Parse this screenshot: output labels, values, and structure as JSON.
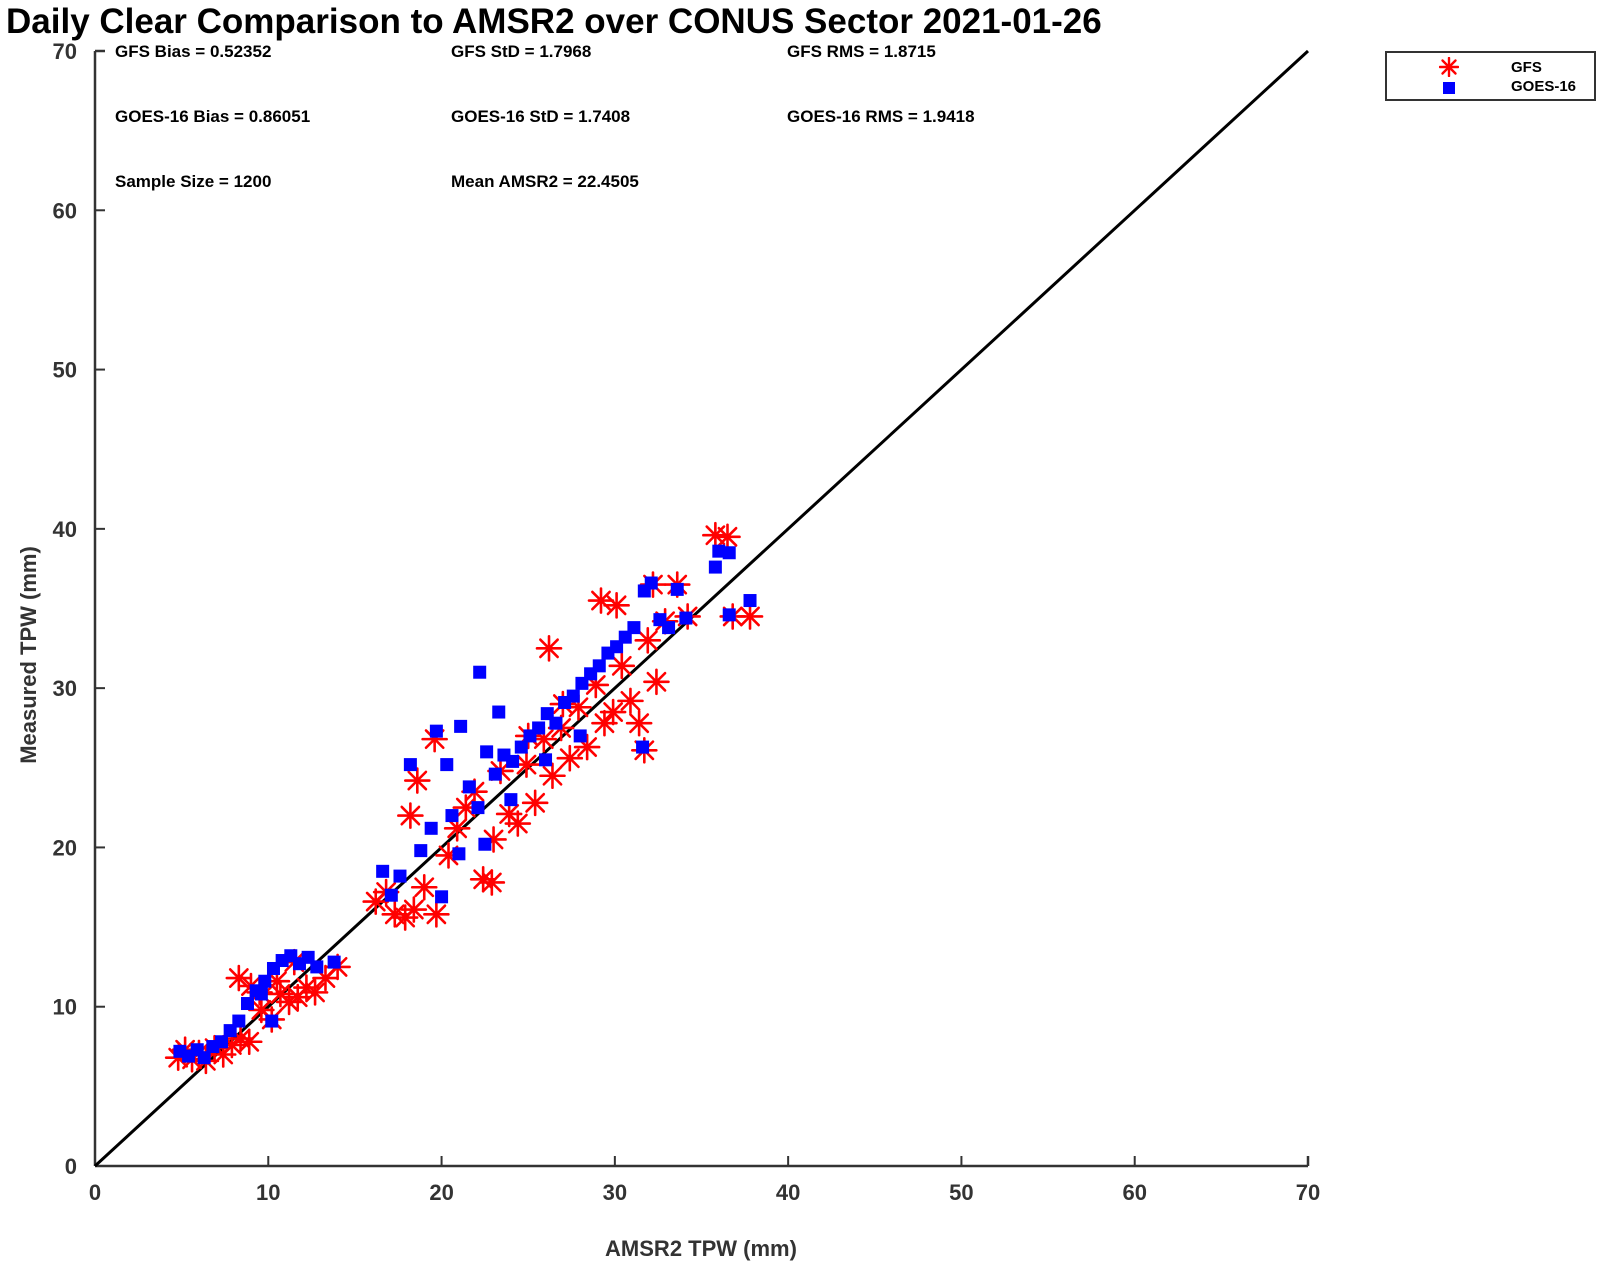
{
  "chart_data": {
    "type": "scatter",
    "title": "Daily Clear Comparison to AMSR2 over CONUS Sector 2021-01-26",
    "xlabel": "AMSR2 TPW (mm)",
    "ylabel": "Measured TPW (mm)",
    "xlim": [
      0,
      70
    ],
    "ylim": [
      0,
      70
    ],
    "xticks": [
      "0",
      "10",
      "20",
      "30",
      "40",
      "50",
      "60",
      "70"
    ],
    "yticks": [
      "0",
      "10",
      "20",
      "30",
      "40",
      "50",
      "60",
      "70"
    ],
    "grid": false,
    "legend_position": "outside-top-right",
    "reference_line": {
      "from": [
        0,
        0
      ],
      "to": [
        70,
        70
      ],
      "color": "#000000"
    },
    "stats": [
      {
        "text": "GFS Bias = 0.52352"
      },
      {
        "text": "GFS StD = 1.7968"
      },
      {
        "text": "GFS RMS = 1.8715"
      },
      {
        "text": "GOES-16 Bias = 0.86051"
      },
      {
        "text": "GOES-16 StD = 1.7408"
      },
      {
        "text": "GOES-16 RMS = 1.9418"
      },
      {
        "text": "Sample Size = 1200"
      },
      {
        "text": "Mean AMSR2 = 22.4505"
      }
    ],
    "series": [
      {
        "name": "GFS",
        "marker": "asterisk",
        "color": "#ff0000",
        "points": [
          [
            4.8,
            6.8
          ],
          [
            5.2,
            7.3
          ],
          [
            5.6,
            6.7
          ],
          [
            6.0,
            7.1
          ],
          [
            6.4,
            6.6
          ],
          [
            6.9,
            7.4
          ],
          [
            7.4,
            7.0
          ],
          [
            7.9,
            7.6
          ],
          [
            8.4,
            8.0
          ],
          [
            8.9,
            7.8
          ],
          [
            8.3,
            11.8
          ],
          [
            9.0,
            11.3
          ],
          [
            9.6,
            9.8
          ],
          [
            10.2,
            9.2
          ],
          [
            10.7,
            10.8
          ],
          [
            11.2,
            10.3
          ],
          [
            11.7,
            10.6
          ],
          [
            12.2,
            11.2
          ],
          [
            12.7,
            10.9
          ],
          [
            13.3,
            11.8
          ],
          [
            14.0,
            12.5
          ],
          [
            11.5,
            12.8
          ],
          [
            10.5,
            11.6
          ],
          [
            9.5,
            10.9
          ],
          [
            16.2,
            16.6
          ],
          [
            16.8,
            17.2
          ],
          [
            17.3,
            15.8
          ],
          [
            17.9,
            15.6
          ],
          [
            18.4,
            16.1
          ],
          [
            19.0,
            17.5
          ],
          [
            19.7,
            15.8
          ],
          [
            18.6,
            24.2
          ],
          [
            19.6,
            26.8
          ],
          [
            18.2,
            22.0
          ],
          [
            20.4,
            19.5
          ],
          [
            20.9,
            21.2
          ],
          [
            21.4,
            22.5
          ],
          [
            21.9,
            23.5
          ],
          [
            22.4,
            18.0
          ],
          [
            22.9,
            17.8
          ],
          [
            23.0,
            20.5
          ],
          [
            23.4,
            24.8
          ],
          [
            23.9,
            22.1
          ],
          [
            24.4,
            21.5
          ],
          [
            24.9,
            25.2
          ],
          [
            25.4,
            22.8
          ],
          [
            25.9,
            26.8
          ],
          [
            26.2,
            32.5
          ],
          [
            26.4,
            24.5
          ],
          [
            26.9,
            27.5
          ],
          [
            27.4,
            25.6
          ],
          [
            27.9,
            28.8
          ],
          [
            28.4,
            26.3
          ],
          [
            28.9,
            30.2
          ],
          [
            29.2,
            35.5
          ],
          [
            29.4,
            27.8
          ],
          [
            29.9,
            28.5
          ],
          [
            30.1,
            35.2
          ],
          [
            30.4,
            31.4
          ],
          [
            30.9,
            29.2
          ],
          [
            31.4,
            27.8
          ],
          [
            31.7,
            26.1
          ],
          [
            31.9,
            33.0
          ],
          [
            32.2,
            36.5
          ],
          [
            32.4,
            30.4
          ],
          [
            32.9,
            34.2
          ],
          [
            33.6,
            36.5
          ],
          [
            34.2,
            34.5
          ],
          [
            35.8,
            39.6
          ],
          [
            36.5,
            39.5
          ],
          [
            36.8,
            34.5
          ],
          [
            37.8,
            34.5
          ],
          [
            25.0,
            27.0
          ],
          [
            27.0,
            29.0
          ]
        ]
      },
      {
        "name": "GOES-16",
        "marker": "square",
        "color": "#0000ff",
        "points": [
          [
            4.9,
            7.2
          ],
          [
            5.4,
            6.9
          ],
          [
            5.9,
            7.3
          ],
          [
            6.3,
            6.8
          ],
          [
            6.8,
            7.5
          ],
          [
            7.3,
            7.8
          ],
          [
            7.8,
            8.5
          ],
          [
            8.3,
            9.1
          ],
          [
            8.8,
            10.2
          ],
          [
            9.3,
            11.0
          ],
          [
            9.8,
            11.6
          ],
          [
            10.3,
            12.4
          ],
          [
            10.8,
            12.9
          ],
          [
            11.3,
            13.2
          ],
          [
            11.8,
            12.7
          ],
          [
            12.3,
            13.1
          ],
          [
            12.8,
            12.5
          ],
          [
            13.8,
            12.8
          ],
          [
            10.2,
            9.1
          ],
          [
            9.6,
            10.8
          ],
          [
            16.6,
            18.5
          ],
          [
            17.1,
            17.0
          ],
          [
            17.6,
            18.2
          ],
          [
            18.2,
            25.2
          ],
          [
            18.8,
            19.8
          ],
          [
            19.4,
            21.2
          ],
          [
            19.7,
            27.3
          ],
          [
            20.0,
            16.9
          ],
          [
            20.3,
            25.2
          ],
          [
            20.6,
            22.0
          ],
          [
            21.1,
            27.6
          ],
          [
            21.6,
            23.8
          ],
          [
            22.1,
            22.5
          ],
          [
            22.2,
            31.0
          ],
          [
            22.6,
            26.0
          ],
          [
            23.1,
            24.6
          ],
          [
            23.3,
            28.5
          ],
          [
            23.6,
            25.8
          ],
          [
            24.1,
            25.4
          ],
          [
            24.6,
            26.3
          ],
          [
            25.1,
            27.0
          ],
          [
            25.6,
            27.5
          ],
          [
            26.1,
            28.4
          ],
          [
            26.6,
            27.8
          ],
          [
            27.1,
            29.1
          ],
          [
            27.6,
            29.5
          ],
          [
            28.1,
            30.3
          ],
          [
            28.6,
            30.9
          ],
          [
            29.1,
            31.4
          ],
          [
            29.6,
            32.2
          ],
          [
            30.1,
            32.6
          ],
          [
            30.6,
            33.2
          ],
          [
            31.1,
            33.8
          ],
          [
            31.6,
            26.3
          ],
          [
            31.7,
            36.1
          ],
          [
            32.1,
            36.6
          ],
          [
            32.6,
            34.3
          ],
          [
            33.1,
            33.8
          ],
          [
            33.6,
            36.2
          ],
          [
            34.1,
            34.4
          ],
          [
            35.8,
            37.6
          ],
          [
            36.0,
            38.6
          ],
          [
            36.6,
            38.5
          ],
          [
            36.6,
            34.6
          ],
          [
            37.8,
            35.5
          ],
          [
            24.0,
            23.0
          ],
          [
            26.0,
            25.5
          ],
          [
            28.0,
            27.0
          ],
          [
            22.5,
            20.2
          ],
          [
            21.0,
            19.6
          ]
        ]
      }
    ]
  },
  "legend": {
    "items": [
      {
        "label": "GFS",
        "marker": "asterisk",
        "color": "#ff0000"
      },
      {
        "label": "GOES-16",
        "marker": "square",
        "color": "#0000ff"
      }
    ]
  }
}
